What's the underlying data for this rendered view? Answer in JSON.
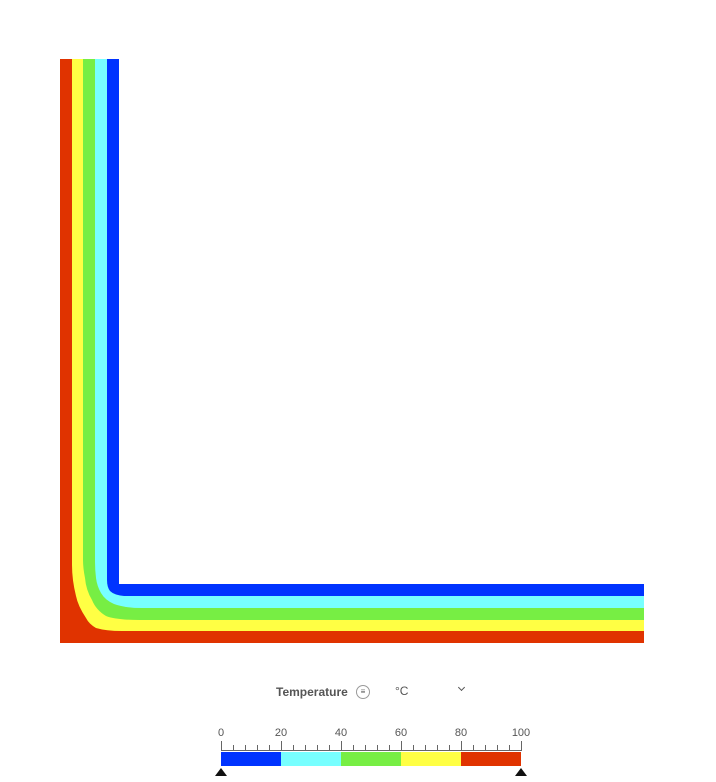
{
  "legend": {
    "quantity_label": "Temperature",
    "menu_icon": "menu-icon",
    "unit_selected": "°C",
    "dropdown_icon": "chevron-down-icon",
    "scale_min": 0,
    "scale_max": 100,
    "tick_labels": [
      "0",
      "20",
      "40",
      "60",
      "80",
      "100"
    ],
    "bands": [
      {
        "from": 0,
        "to": 20,
        "color": "#0033ff"
      },
      {
        "from": 20,
        "to": 40,
        "color": "#77ffff"
      },
      {
        "from": 40,
        "to": 60,
        "color": "#77ee44"
      },
      {
        "from": 60,
        "to": 80,
        "color": "#ffff44"
      },
      {
        "from": 80,
        "to": 100,
        "color": "#e03300"
      }
    ],
    "range_handles": [
      0,
      100
    ]
  }
}
